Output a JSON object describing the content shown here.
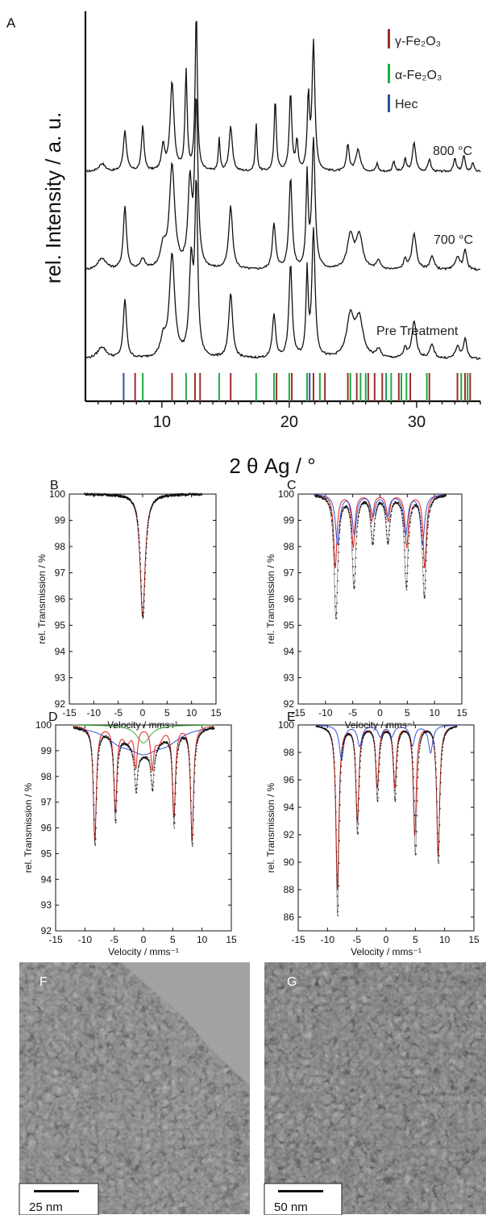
{
  "colors": {
    "gamma": "#9b2d2d",
    "alpha": "#1faa45",
    "hec": "#2c4fa8",
    "trace": "#111111",
    "fit_red": "#e0231d",
    "fit_blue": "#3a4fd8",
    "fit_green": "#35b03a",
    "tem_bg": "#8c8c8c"
  },
  "panel_a": {
    "label": "A",
    "ylabel": "rel. Intensity / a. u.",
    "xlabel": "2 θ Ag / °",
    "legend": [
      {
        "name": "γ-Fe₂O₃",
        "color": "#9b2d2d"
      },
      {
        "name": "α-Fe₂O₃",
        "color": "#1faa45"
      },
      {
        "name": "Hec",
        "color": "#2c4fa8"
      }
    ],
    "trace_labels": [
      "800 °C",
      "700 °C",
      "Pre Treatment"
    ]
  },
  "panel_f": {
    "label": "F",
    "scalebar": "25 nm"
  },
  "panel_g": {
    "label": "G",
    "scalebar": "50 nm"
  },
  "chart_data": [
    {
      "type": "line",
      "panel": "A",
      "xlabel": "2 θ Ag / °",
      "ylabel": "rel. Intensity / a. u.",
      "xlim": [
        4,
        35
      ],
      "xticks": [
        10,
        20,
        30
      ],
      "series": [
        {
          "name": "800 °C",
          "peaks": [
            [
              5.3,
              0.05,
              0.3
            ],
            [
              7.1,
              0.25,
              0.15
            ],
            [
              8.5,
              0.28,
              0.12
            ],
            [
              10.1,
              0.15,
              0.15
            ],
            [
              10.8,
              0.55,
              0.18
            ],
            [
              11.9,
              0.62,
              0.1
            ],
            [
              12.7,
              1.0,
              0.1
            ],
            [
              14.5,
              0.2,
              0.08
            ],
            [
              15.4,
              0.28,
              0.15
            ],
            [
              17.4,
              0.3,
              0.08
            ],
            [
              18.9,
              0.45,
              0.1
            ],
            [
              20.1,
              0.48,
              0.12
            ],
            [
              20.6,
              0.18,
              0.1
            ],
            [
              21.5,
              0.45,
              0.1
            ],
            [
              21.9,
              0.8,
              0.13
            ],
            [
              24.6,
              0.17,
              0.12
            ],
            [
              25.4,
              0.14,
              0.2
            ],
            [
              26.9,
              0.05,
              0.1
            ],
            [
              28.2,
              0.07,
              0.1
            ],
            [
              29.1,
              0.08,
              0.1
            ],
            [
              29.8,
              0.18,
              0.15
            ],
            [
              31.0,
              0.08,
              0.12
            ],
            [
              33.0,
              0.08,
              0.12
            ],
            [
              33.7,
              0.1,
              0.12
            ],
            [
              34.4,
              0.06,
              0.1
            ]
          ]
        },
        {
          "name": "700 °C",
          "peaks": [
            [
              5.3,
              0.07,
              0.4
            ],
            [
              7.1,
              0.38,
              0.15
            ],
            [
              8.5,
              0.06,
              0.2
            ],
            [
              10.1,
              0.12,
              0.25
            ],
            [
              10.8,
              0.62,
              0.25
            ],
            [
              12.2,
              0.5,
              0.18
            ],
            [
              12.7,
              1.0,
              0.15
            ],
            [
              15.4,
              0.38,
              0.18
            ],
            [
              18.8,
              0.28,
              0.15
            ],
            [
              20.1,
              0.55,
              0.15
            ],
            [
              21.4,
              0.55,
              0.1
            ],
            [
              21.9,
              0.78,
              0.15
            ],
            [
              24.8,
              0.2,
              0.3
            ],
            [
              25.5,
              0.2,
              0.3
            ],
            [
              27.0,
              0.05,
              0.2
            ],
            [
              29.1,
              0.06,
              0.15
            ],
            [
              29.8,
              0.22,
              0.2
            ],
            [
              31.2,
              0.08,
              0.2
            ],
            [
              33.2,
              0.08,
              0.2
            ],
            [
              33.8,
              0.12,
              0.15
            ]
          ]
        },
        {
          "name": "Pre Treatment",
          "peaks": [
            [
              5.3,
              0.07,
              0.4
            ],
            [
              7.1,
              0.35,
              0.15
            ],
            [
              10.1,
              0.1,
              0.25
            ],
            [
              10.8,
              0.6,
              0.25
            ],
            [
              12.3,
              0.55,
              0.18
            ],
            [
              12.7,
              1.0,
              0.13
            ],
            [
              15.4,
              0.38,
              0.18
            ],
            [
              18.8,
              0.26,
              0.15
            ],
            [
              20.1,
              0.55,
              0.15
            ],
            [
              21.4,
              0.5,
              0.1
            ],
            [
              21.9,
              0.75,
              0.15
            ],
            [
              24.8,
              0.24,
              0.35
            ],
            [
              25.5,
              0.22,
              0.35
            ],
            [
              27.0,
              0.05,
              0.2
            ],
            [
              29.1,
              0.06,
              0.15
            ],
            [
              29.8,
              0.22,
              0.2
            ],
            [
              31.2,
              0.08,
              0.2
            ],
            [
              33.2,
              0.07,
              0.2
            ],
            [
              33.8,
              0.12,
              0.15
            ]
          ]
        }
      ],
      "reflections": {
        "gamma": [
          7.9,
          10.8,
          12.6,
          13.0,
          15.4,
          19.0,
          20.2,
          21.9,
          22.8,
          24.6,
          25.3,
          26.2,
          26.7,
          27.3,
          28.6,
          29.5,
          31.0,
          33.2,
          33.8,
          34.2
        ],
        "alpha": [
          8.5,
          11.9,
          14.5,
          17.4,
          18.8,
          20.0,
          21.4,
          22.4,
          24.8,
          25.6,
          26.0,
          27.6,
          28.0,
          28.8,
          29.2,
          30.8,
          33.5,
          34.0
        ],
        "hec": [
          7.0,
          21.6
        ]
      }
    },
    {
      "type": "line",
      "panel": "B",
      "label": "B",
      "xlabel": "Velocity / mms⁻¹",
      "ylabel": "rel. Transmission / %",
      "xlim": [
        -15,
        15
      ],
      "ylim": [
        92,
        100
      ],
      "xticks": [
        -15,
        -10,
        -5,
        0,
        5,
        10,
        15
      ],
      "yticks": [
        92,
        93,
        94,
        95,
        96,
        97,
        98,
        99,
        100
      ],
      "components": [
        {
          "color": "red",
          "baseline": 100,
          "lines": [
            [
              0.0,
              4.7,
              0.6
            ]
          ]
        }
      ],
      "measured": {
        "baseline": 100,
        "lines": [
          [
            0.0,
            4.7,
            0.6
          ]
        ]
      }
    },
    {
      "type": "line",
      "panel": "C",
      "label": "C",
      "xlabel": "Velocity / mms⁻¹",
      "ylabel": "rel. Transmission / %",
      "xlim": [
        -15,
        15
      ],
      "ylim": [
        92,
        100
      ],
      "xticks": [
        -15,
        -10,
        -5,
        0,
        5,
        10,
        15
      ],
      "yticks": [
        92,
        93,
        94,
        95,
        96,
        97,
        98,
        99,
        100
      ],
      "components": [
        {
          "color": "red",
          "baseline": 100,
          "lines": [
            [
              -8.2,
              2.8,
              0.35
            ],
            [
              -4.9,
              2.0,
              0.35
            ],
            [
              -1.5,
              1.0,
              0.35
            ],
            [
              1.5,
              1.0,
              0.35
            ],
            [
              4.9,
              2.0,
              0.35
            ],
            [
              8.2,
              2.8,
              0.35
            ]
          ]
        },
        {
          "color": "blue",
          "baseline": 100,
          "lines": [
            [
              -7.8,
              1.9,
              0.45
            ],
            [
              -4.7,
              1.5,
              0.45
            ],
            [
              -1.3,
              0.8,
              0.45
            ],
            [
              1.3,
              0.8,
              0.45
            ],
            [
              4.7,
              1.5,
              0.45
            ],
            [
              7.8,
              1.9,
              0.45
            ]
          ]
        }
      ],
      "measured": {
        "baseline": 100,
        "lines": [
          [
            -8.1,
            4.7,
            0.4
          ],
          [
            -4.8,
            3.5,
            0.4
          ],
          [
            -1.4,
            1.8,
            0.4
          ],
          [
            1.4,
            1.8,
            0.4
          ],
          [
            4.8,
            3.5,
            0.4
          ],
          [
            8.1,
            3.9,
            0.4
          ]
        ]
      }
    },
    {
      "type": "line",
      "panel": "D",
      "label": "D",
      "xlabel": "Velocity / mms⁻¹",
      "ylabel": "rel. Transmission / %",
      "xlim": [
        -15,
        15
      ],
      "ylim": [
        92,
        100
      ],
      "xticks": [
        -15,
        -10,
        -5,
        0,
        5,
        10,
        15
      ],
      "yticks": [
        92,
        93,
        94,
        95,
        96,
        97,
        98,
        99,
        100
      ],
      "components": [
        {
          "color": "green",
          "baseline": 100,
          "lines": [
            [
              0.0,
              0.7,
              1.4
            ]
          ]
        },
        {
          "color": "blue",
          "baseline": 100,
          "lines": [
            [
              -4.0,
              0.5,
              3.0
            ],
            [
              0.0,
              0.8,
              3.0
            ],
            [
              4.0,
              0.5,
              3.0
            ]
          ]
        },
        {
          "color": "red",
          "baseline": 100,
          "lines": [
            [
              -8.3,
              4.5,
              0.3
            ],
            [
              -4.8,
              3.3,
              0.3
            ],
            [
              -1.3,
              1.5,
              0.3
            ],
            [
              1.5,
              1.5,
              0.3
            ],
            [
              5.2,
              3.5,
              0.3
            ],
            [
              8.3,
              4.5,
              0.3
            ],
            [
              -2.8,
              0.6,
              0.8
            ],
            [
              2.6,
              0.6,
              0.8
            ]
          ]
        }
      ],
      "measured": {
        "baseline": 100,
        "lines": [
          [
            -8.3,
            4.5,
            0.3
          ],
          [
            -4.8,
            3.4,
            0.3
          ],
          [
            -1.3,
            1.6,
            0.3
          ],
          [
            1.5,
            1.6,
            0.3
          ],
          [
            5.2,
            3.6,
            0.3
          ],
          [
            8.3,
            4.5,
            0.3
          ],
          [
            0.0,
            1.1,
            3.2
          ]
        ]
      }
    },
    {
      "type": "line",
      "panel": "E",
      "label": "E",
      "xlabel": "Velocity / mms⁻¹",
      "ylabel": "rel. Transmission / %",
      "xlim": [
        -15,
        15
      ],
      "ylim": [
        85,
        100
      ],
      "xticks": [
        -15,
        -10,
        -5,
        0,
        5,
        10,
        15
      ],
      "yticks": [
        86,
        88,
        90,
        92,
        94,
        96,
        98,
        100
      ],
      "components": [
        {
          "color": "red",
          "baseline": 100,
          "lines": [
            [
              -8.3,
              12.0,
              0.3
            ],
            [
              -4.9,
              7.0,
              0.3
            ],
            [
              -1.5,
              4.5,
              0.3
            ],
            [
              1.5,
              4.5,
              0.3
            ],
            [
              4.9,
              8.0,
              0.3
            ],
            [
              8.9,
              9.5,
              0.3
            ]
          ]
        },
        {
          "color": "blue",
          "baseline": 100,
          "lines": [
            [
              -7.6,
              2.5,
              0.45
            ],
            [
              -4.5,
              1.5,
              0.45
            ],
            [
              -1.0,
              0.8,
              0.45
            ],
            [
              1.0,
              0.8,
              0.45
            ],
            [
              4.5,
              1.5,
              0.45
            ],
            [
              7.6,
              2.0,
              0.45
            ]
          ]
        }
      ],
      "measured": {
        "baseline": 100,
        "lines": [
          [
            -8.3,
            13.8,
            0.3
          ],
          [
            -4.9,
            7.8,
            0.3
          ],
          [
            -1.5,
            5.4,
            0.3
          ],
          [
            1.5,
            5.4,
            0.3
          ],
          [
            5.0,
            9.4,
            0.3
          ],
          [
            8.9,
            10.0,
            0.3
          ]
        ]
      }
    }
  ]
}
